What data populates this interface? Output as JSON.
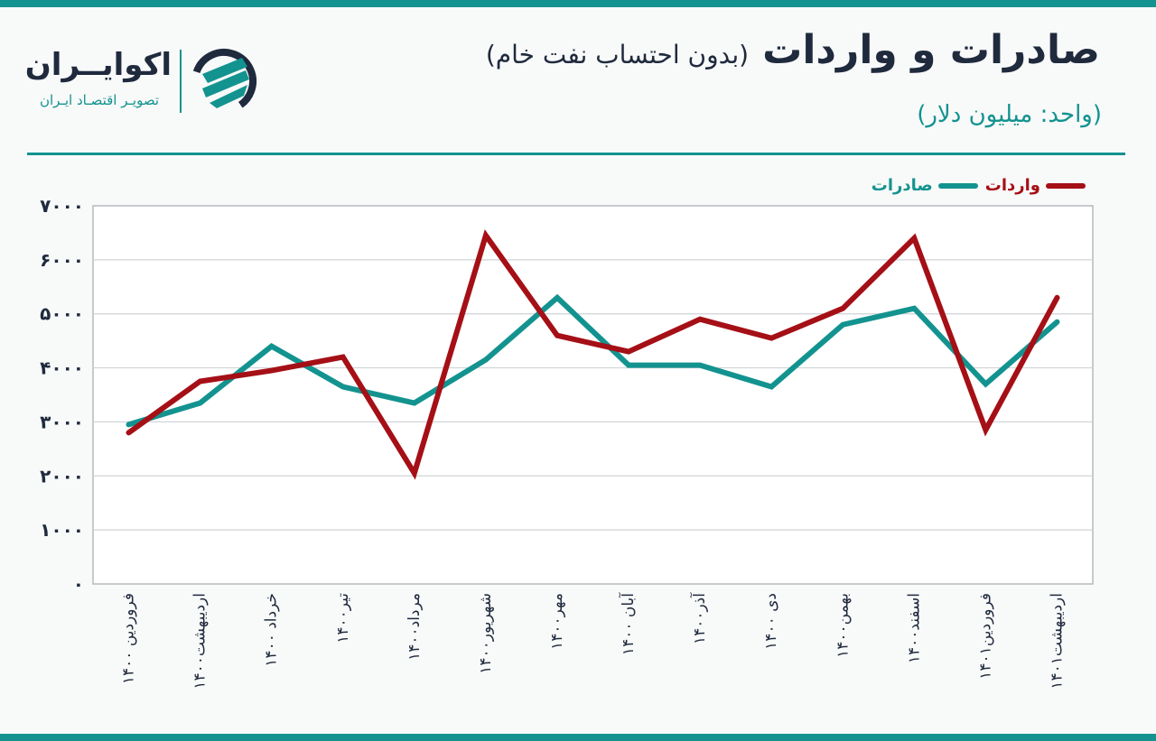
{
  "header": {
    "title": "صادرات و واردات",
    "subtitle": "(بدون احتساب نفت خام)",
    "unit": "(واحد: میلیون دلار)"
  },
  "brand": {
    "name": "اکوایــران",
    "tagline": "تصویـر اقتصـاد ایـران"
  },
  "colors": {
    "accent": "#13938f",
    "exports": "#13938f",
    "imports": "#a50f16",
    "text": "#1f2a3d"
  },
  "chart_data": {
    "type": "line",
    "categories": [
      "فروردین ۱۴۰۰",
      "اردیبهشت۱۴۰۰",
      "خرداد ۱۴۰۰",
      "تیر۱۴۰۰",
      "مرداد۱۴۰۰",
      "شهریور۱۴۰۰",
      "مهر۱۴۰۰",
      "آبان ۱۴۰۰",
      "آذر۱۴۰۰",
      "دی ۱۴۰۰",
      "بهمن۱۴۰۰",
      "اسفند۱۴۰۰",
      "فروردین۱۴۰۱",
      "اردیبهشت۱۴۰۱"
    ],
    "series": [
      {
        "name": "واردات",
        "values": [
          2800,
          3750,
          3950,
          4200,
          2050,
          6450,
          4600,
          4300,
          4900,
          4550,
          5100,
          6400,
          2850,
          5300
        ]
      },
      {
        "name": "صادرات",
        "values": [
          2950,
          3350,
          4400,
          3650,
          3350,
          4150,
          5300,
          4050,
          4050,
          3650,
          4800,
          5100,
          3700,
          4850
        ]
      }
    ],
    "ylim": [
      0,
      7000
    ],
    "yticks": [
      "۰",
      "۱۰۰۰",
      "۲۰۰۰",
      "۳۰۰۰",
      "۴۰۰۰",
      "۵۰۰۰",
      "۶۰۰۰",
      "۷۰۰۰"
    ],
    "grid": true,
    "legend_position": "top-right"
  }
}
